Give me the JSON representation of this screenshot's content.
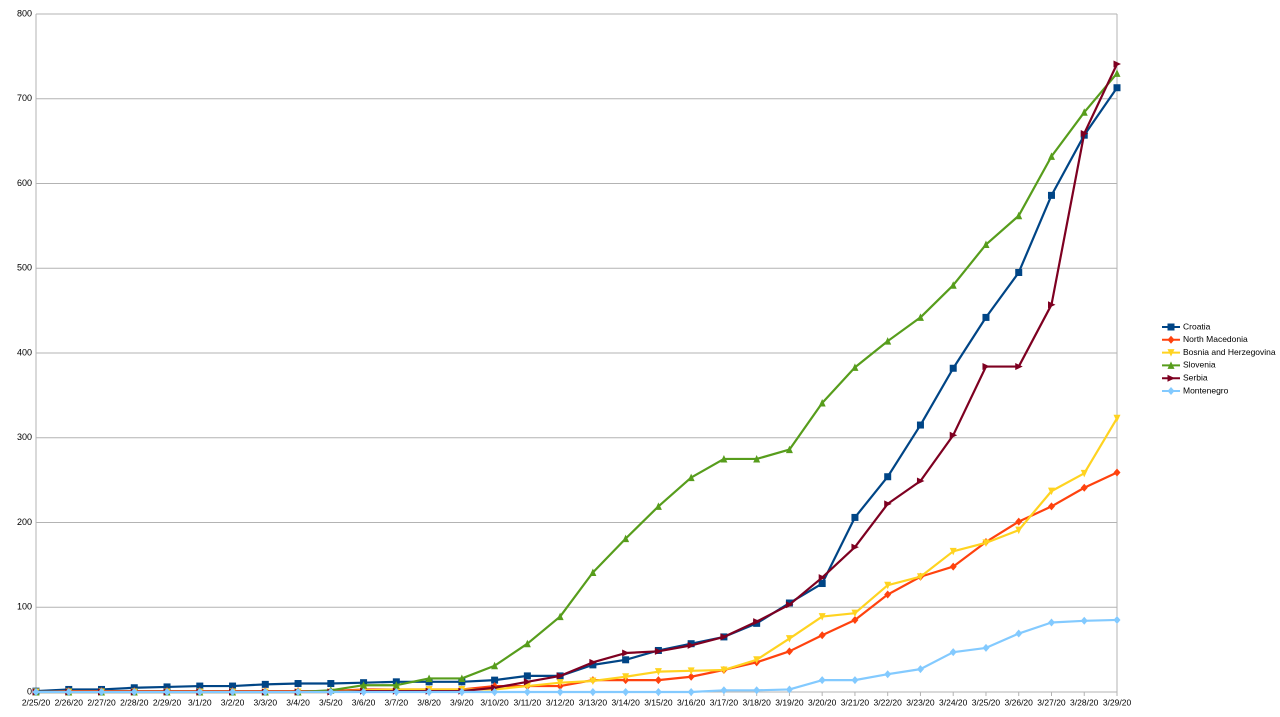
{
  "chart_data": {
    "type": "line",
    "categories": [
      "2/25/20",
      "2/26/20",
      "2/27/20",
      "2/28/20",
      "2/29/20",
      "3/1/20",
      "3/2/20",
      "3/3/20",
      "3/4/20",
      "3/5/20",
      "3/6/20",
      "3/7/20",
      "3/8/20",
      "3/9/20",
      "3/10/20",
      "3/11/20",
      "3/12/20",
      "3/13/20",
      "3/14/20",
      "3/15/20",
      "3/16/20",
      "3/17/20",
      "3/18/20",
      "3/19/20",
      "3/20/20",
      "3/21/20",
      "3/22/20",
      "3/23/20",
      "3/24/20",
      "3/25/20",
      "3/26/20",
      "3/27/20",
      "3/28/20",
      "3/29/20"
    ],
    "ylim": [
      0,
      800
    ],
    "yticks": [
      0,
      100,
      200,
      300,
      400,
      500,
      600,
      700,
      800
    ],
    "grid": true,
    "legend": "right",
    "series": [
      {
        "name": "Croatia",
        "color": "#004586",
        "marker": "square",
        "values": [
          1,
          3,
          3,
          5,
          6,
          7,
          7,
          9,
          10,
          10,
          11,
          12,
          12,
          12,
          14,
          19,
          19,
          32,
          38,
          49,
          57,
          65,
          81,
          105,
          128,
          206,
          254,
          315,
          382,
          442,
          495,
          586,
          657,
          713
        ]
      },
      {
        "name": "North Macedonia",
        "color": "#ff420e",
        "marker": "diamond",
        "values": [
          0,
          1,
          1,
          1,
          1,
          1,
          1,
          1,
          1,
          1,
          3,
          3,
          3,
          3,
          7,
          7,
          7,
          14,
          14,
          14,
          18,
          26,
          35,
          48,
          67,
          85,
          115,
          136,
          148,
          177,
          201,
          219,
          241,
          259
        ]
      },
      {
        "name": "Bosnia and Herzegovina",
        "color": "#ffd320",
        "marker": "down",
        "values": [
          0,
          0,
          0,
          0,
          0,
          0,
          0,
          0,
          0,
          0,
          2,
          3,
          3,
          3,
          3,
          7,
          11,
          13,
          18,
          24,
          25,
          26,
          38,
          63,
          89,
          93,
          126,
          136,
          166,
          176,
          191,
          237,
          258,
          323
        ]
      },
      {
        "name": "Slovenia",
        "color": "#579d1c",
        "marker": "up",
        "values": [
          0,
          0,
          0,
          0,
          0,
          0,
          0,
          0,
          0,
          2,
          8,
          8,
          16,
          16,
          31,
          57,
          89,
          141,
          181,
          219,
          253,
          275,
          275,
          286,
          341,
          383,
          414,
          442,
          480,
          528,
          562,
          632,
          684,
          730
        ]
      },
      {
        "name": "Serbia",
        "color": "#7e0021",
        "marker": "right",
        "values": [
          0,
          0,
          0,
          0,
          0,
          0,
          0,
          0,
          0,
          0,
          1,
          1,
          1,
          1,
          5,
          12,
          19,
          35,
          46,
          48,
          55,
          65,
          83,
          103,
          135,
          171,
          222,
          249,
          303,
          384,
          384,
          457,
          659,
          741
        ]
      },
      {
        "name": "Montenegro",
        "color": "#83caff",
        "marker": "diamond",
        "values": [
          0,
          0,
          0,
          0,
          0,
          0,
          0,
          0,
          0,
          0,
          0,
          0,
          0,
          0,
          0,
          0,
          0,
          0,
          0,
          0,
          0,
          2,
          2,
          3,
          14,
          14,
          21,
          27,
          47,
          52,
          69,
          82,
          84,
          85
        ]
      }
    ]
  }
}
